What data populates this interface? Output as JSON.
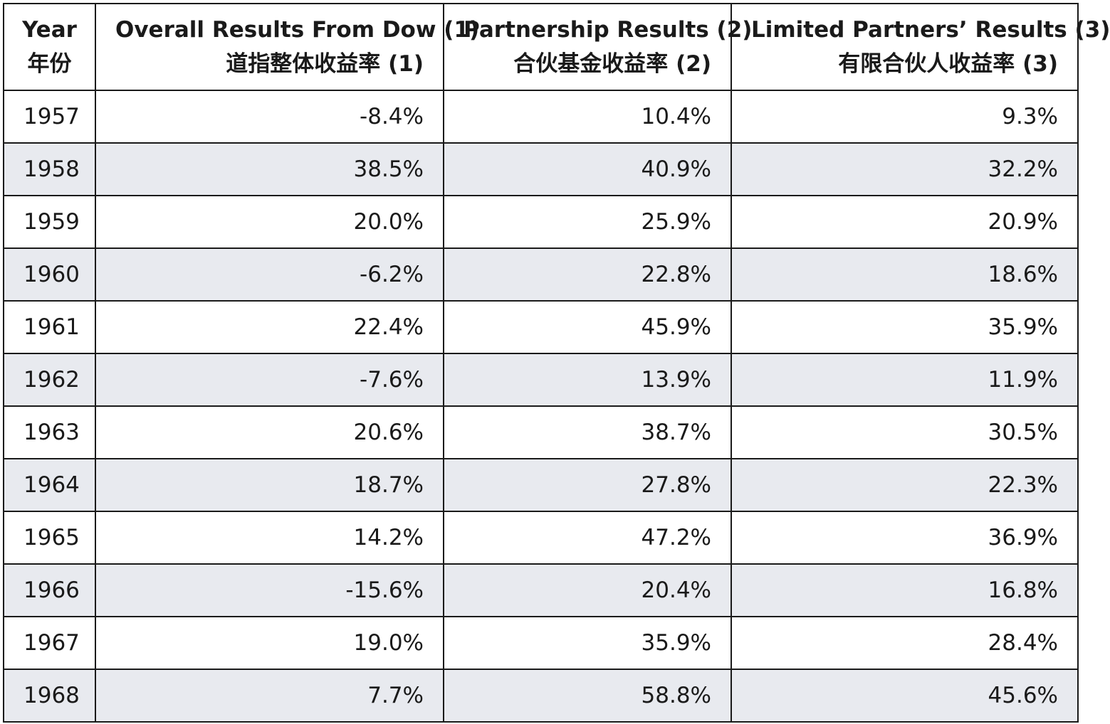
{
  "chart_data": {
    "type": "table",
    "columns": [
      {
        "en": "Year",
        "zh": "年份"
      },
      {
        "en": "Overall Results From Dow (1)",
        "zh": "道指整体收益率 (1)"
      },
      {
        "en": "Partnership Results (2)",
        "zh": "合伙基金收益率 (2)"
      },
      {
        "en": "Limited Partners’ Results (3)",
        "zh": "有限合伙人收益率 (3)"
      }
    ],
    "rows": [
      [
        "1957",
        "-8.4%",
        "10.4%",
        "9.3%"
      ],
      [
        "1958",
        "38.5%",
        "40.9%",
        "32.2%"
      ],
      [
        "1959",
        "20.0%",
        "25.9%",
        "20.9%"
      ],
      [
        "1960",
        "-6.2%",
        "22.8%",
        "18.6%"
      ],
      [
        "1961",
        "22.4%",
        "45.9%",
        "35.9%"
      ],
      [
        "1962",
        "-7.6%",
        "13.9%",
        "11.9%"
      ],
      [
        "1963",
        "20.6%",
        "38.7%",
        "30.5%"
      ],
      [
        "1964",
        "18.7%",
        "27.8%",
        "22.3%"
      ],
      [
        "1965",
        "14.2%",
        "47.2%",
        "36.9%"
      ],
      [
        "1966",
        "-15.6%",
        "20.4%",
        "16.8%"
      ],
      [
        "1967",
        "19.0%",
        "35.9%",
        "28.4%"
      ],
      [
        "1968",
        "7.7%",
        "58.8%",
        "45.6%"
      ]
    ],
    "row_stripe_color": "#e8eaef",
    "border_color": "#1a1a1a"
  }
}
